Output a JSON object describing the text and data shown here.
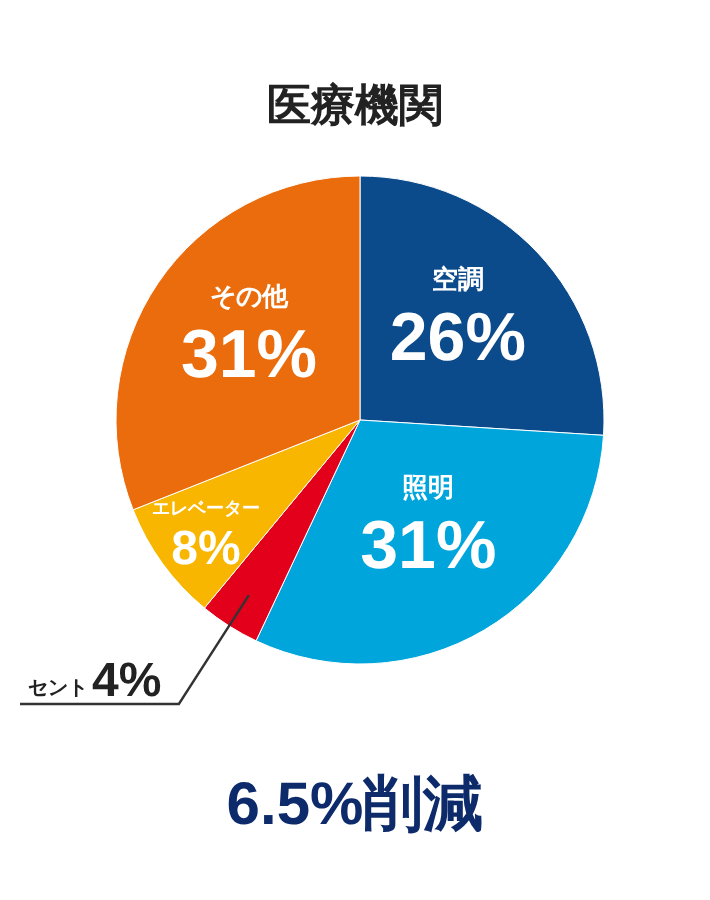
{
  "chart_data": {
    "type": "pie",
    "title": "医療機関",
    "categories": [
      "空調",
      "照明",
      "セント",
      "エレベーター",
      "その他"
    ],
    "values": [
      26,
      31,
      4,
      8,
      31
    ],
    "value_labels": [
      "26%",
      "31%",
      "4%",
      "8%",
      "31%"
    ],
    "colors": [
      "#0b4a8b",
      "#00a5db",
      "#e3001b",
      "#f8b600",
      "#ea6c0c"
    ],
    "annotations": [
      "6.5%削減"
    ]
  }
}
